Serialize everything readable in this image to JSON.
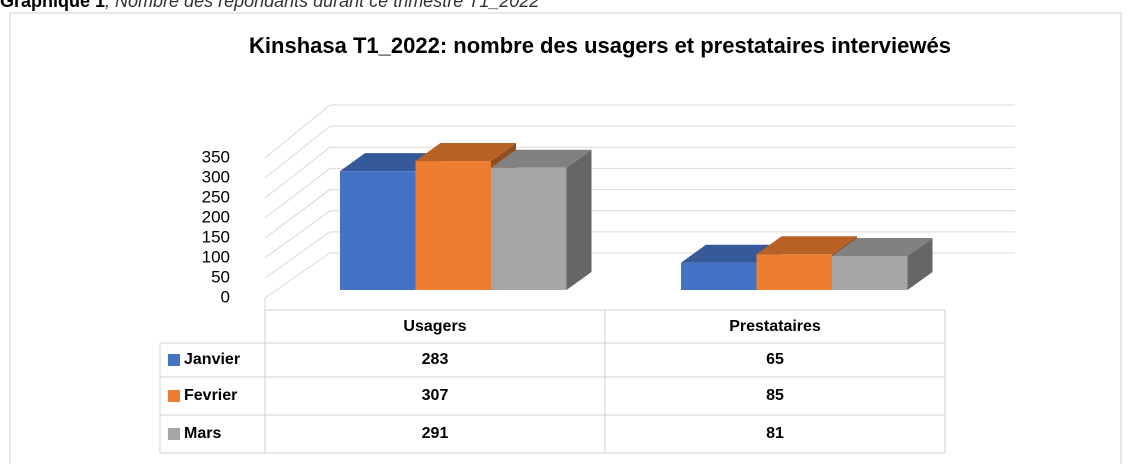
{
  "caption_label": "Graphique 1",
  "caption": ", Nombre des répondants durant ce trimestre T1_2022",
  "chart_data": {
    "type": "bar3d",
    "title": "Kinshasa T1_2022: nombre des usagers et prestataires interviewés",
    "categories": [
      "Usagers",
      "Prestataires"
    ],
    "series": [
      {
        "name": "Janvier",
        "color": "#4472c4",
        "values": [
          283,
          65
        ]
      },
      {
        "name": "Fevrier",
        "color": "#ed7d31",
        "values": [
          307,
          85
        ]
      },
      {
        "name": "Mars",
        "color": "#a5a5a5",
        "values": [
          291,
          81
        ]
      }
    ],
    "ylim": [
      0,
      350
    ],
    "yticks": [
      0,
      50,
      100,
      150,
      200,
      250,
      300,
      350
    ],
    "grid": true,
    "data_table": true
  }
}
